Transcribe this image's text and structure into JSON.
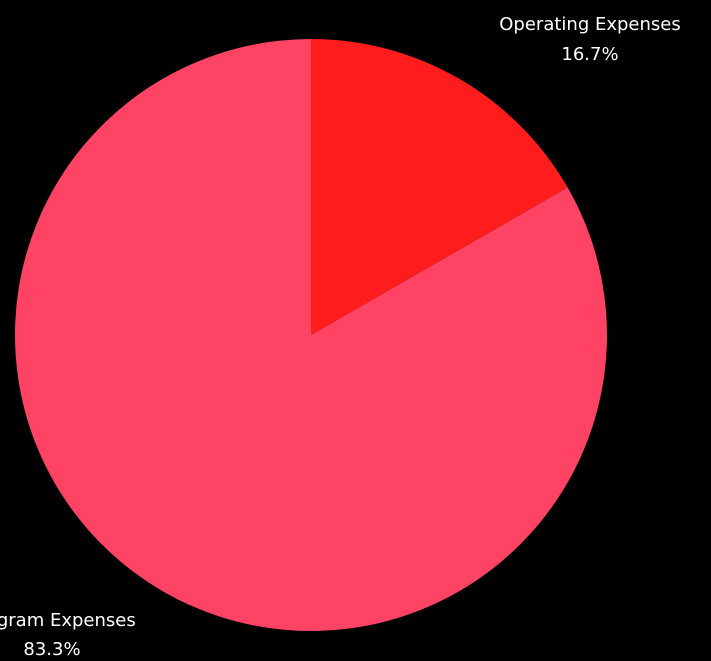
{
  "chart_data": {
    "type": "pie",
    "labels": [
      "Operating Expenses",
      "Program Expenses"
    ],
    "values": [
      16.7,
      83.3
    ],
    "value_labels": [
      "16.7%",
      "83.3%"
    ],
    "colors": [
      "#ff1c1c",
      "#ff4365"
    ],
    "background": "#000000",
    "start_angle_deg": 0,
    "direction": "clockwise",
    "legend": "none"
  }
}
